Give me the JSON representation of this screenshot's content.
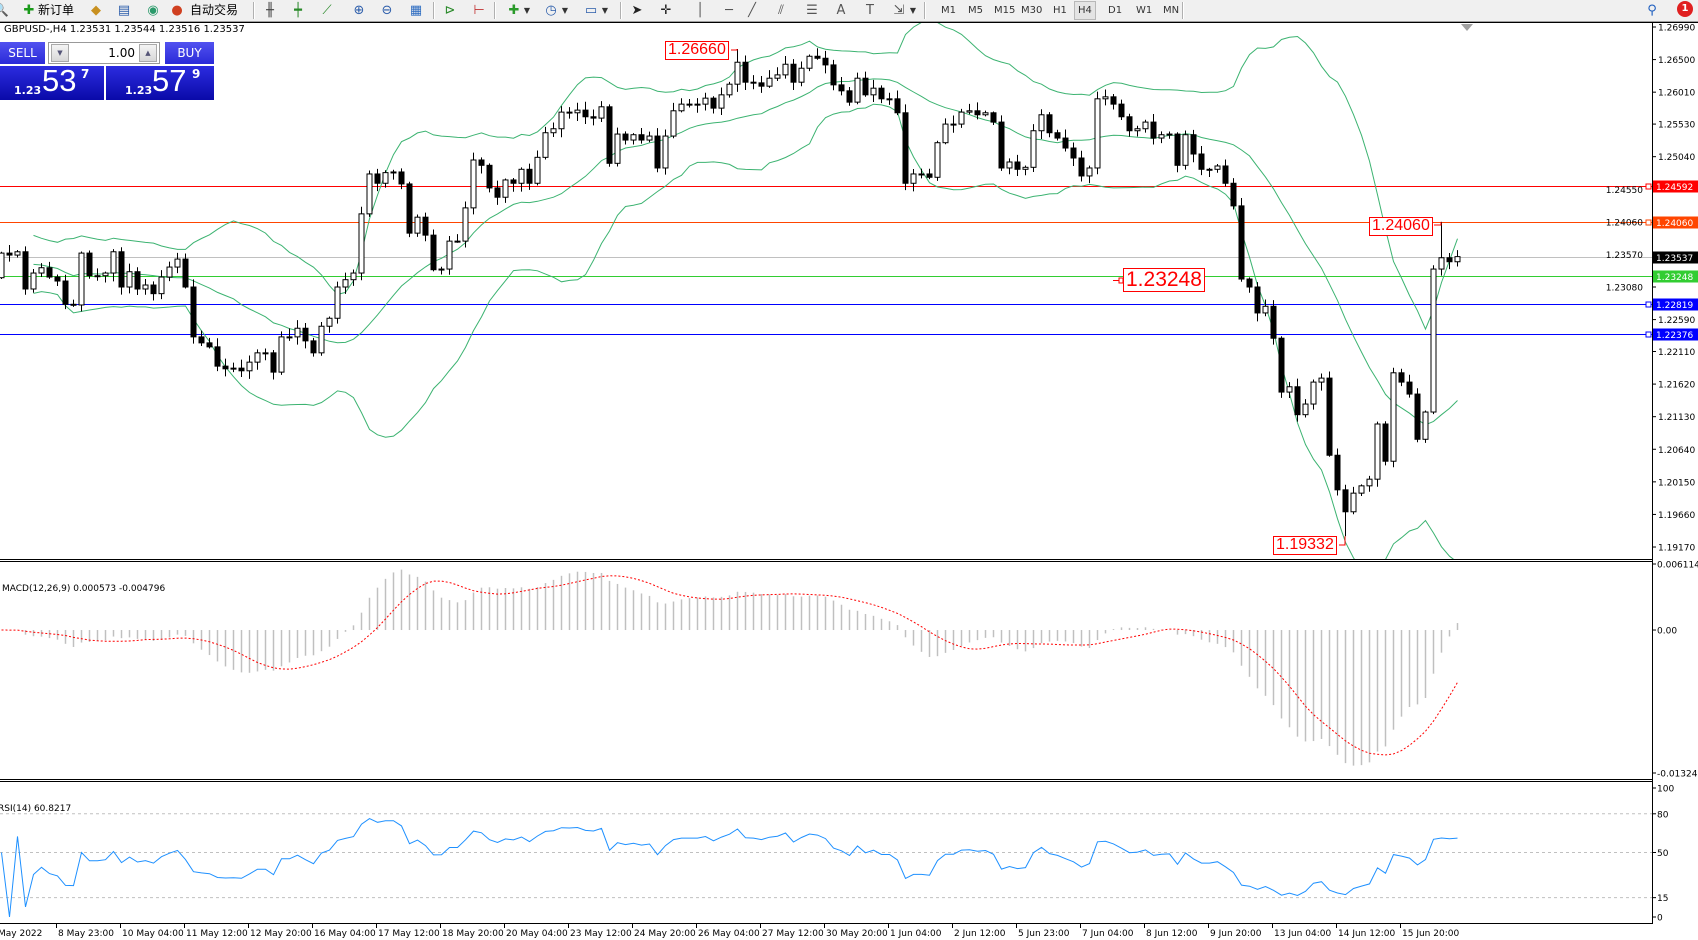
{
  "toolbar": {
    "new_order_label": "新订单",
    "auto_trading_label": "自动交易",
    "icons": [
      "new-order-icon",
      "meta-editor-icon",
      "market-watch-icon",
      "signals-icon",
      "auto-trading-icon",
      "bar-chart-icon",
      "candlestick-icon",
      "line-chart-icon",
      "zoom-in-icon",
      "zoom-out-icon",
      "tile-windows-icon",
      "auto-scroll-icon",
      "chart-shift-icon",
      "indicators-icon",
      "periods-icon",
      "templates-icon",
      "cursor-icon",
      "crosshair-icon",
      "vertical-line-icon",
      "horizontal-line-icon",
      "trendline-icon",
      "equidistant-channel-icon",
      "fibonacci-icon",
      "text-icon",
      "text-label-icon",
      "arrows-icon"
    ],
    "timeframes": [
      "M1",
      "M5",
      "M15",
      "M30",
      "H1",
      "H4",
      "D1",
      "W1",
      "MN"
    ],
    "active_timeframe": "H4",
    "notification_count": "1"
  },
  "chart": {
    "header": "GBPUSD-,H4  1.23531 1.23544 1.23516 1.23537",
    "symbol": "GBPUSD-",
    "timeframe": "H4"
  },
  "trade_panel": {
    "sell_label": "SELL",
    "buy_label": "BUY",
    "lot": "1.00",
    "sell_prefix": "1.23",
    "sell_big": "53",
    "sell_pip": "7",
    "buy_prefix": "1.23",
    "buy_big": "57",
    "buy_pip": "9"
  },
  "price_axis": {
    "ticks": [
      "1.26990",
      "1.26500",
      "1.26010",
      "1.25530",
      "1.25040",
      "1.24550",
      "1.24060",
      "1.23570",
      "1.23080",
      "1.22590",
      "1.22110",
      "1.21620",
      "1.21130",
      "1.20640",
      "1.20150",
      "1.19660",
      "1.19170"
    ]
  },
  "time_axis": {
    "labels": [
      "May 2022",
      "8 May 23:00",
      "10 May 04:00",
      "11 May 12:00",
      "12 May 20:00",
      "16 May 04:00",
      "17 May 12:00",
      "18 May 20:00",
      "20 May 04:00",
      "23 May 12:00",
      "24 May 20:00",
      "26 May 04:00",
      "27 May 12:00",
      "30 May 20:00",
      "1 Jun 04:00",
      "2 Jun 12:00",
      "5 Jun 23:00",
      "7 Jun 04:00",
      "8 Jun 12:00",
      "9 Jun 20:00",
      "13 Jun 04:00",
      "14 Jun 12:00",
      "15 Jun 20:00"
    ]
  },
  "levels": [
    {
      "price": "1.24592",
      "color": "#ff0000",
      "label_bg": "#ff0000"
    },
    {
      "price": "1.24060",
      "color": "#ff4500",
      "label_bg": "#ff4500"
    },
    {
      "price": "1.23537",
      "color": "#c0c0c0",
      "label_bg": "#000000"
    },
    {
      "price": "1.23248",
      "color": "#32cd32",
      "label_bg": "#32cd32"
    },
    {
      "price": "1.22819",
      "color": "#0000ff",
      "label_bg": "#0000ff"
    },
    {
      "price": "1.22376",
      "color": "#0000ff",
      "label_bg": "#0000ff"
    }
  ],
  "callouts": {
    "high": "1.26660",
    "recent_high": "1.24060",
    "level": "1.23248",
    "low": "1.19332"
  },
  "macd": {
    "title": "MACD(12,26,9) 0.000573 -0.004796",
    "scale_max": "0.006114",
    "scale_zero": "0.00",
    "scale_min": "-0.013241",
    "histogram_color": "#c0c0c0",
    "signal_color": "#ff0000"
  },
  "rsi": {
    "title": "RSI(14) 60.8217",
    "levels": [
      "100",
      "80",
      "50",
      "15",
      "0"
    ],
    "line_color": "#1e90ff"
  },
  "chart_data": {
    "type": "candlestick",
    "symbol": "GBPUSD-",
    "timeframe": "H4",
    "ylim": [
      1.1917,
      1.2699
    ],
    "first_open": 1.2322,
    "close": [
      1.2359,
      1.2356,
      1.2361,
      1.2305,
      1.2329,
      1.2337,
      1.2323,
      1.2317,
      1.2282,
      1.2281,
      1.2359,
      1.2325,
      1.2325,
      1.2329,
      1.2361,
      1.2308,
      1.2331,
      1.2305,
      1.2311,
      1.2298,
      1.2323,
      1.2338,
      1.235,
      1.2308,
      1.2233,
      1.2224,
      1.2218,
      1.2189,
      1.2185,
      1.2186,
      1.2182,
      1.2195,
      1.2209,
      1.2209,
      1.218,
      1.2233,
      1.2233,
      1.2246,
      1.2227,
      1.2209,
      1.2249,
      1.2261,
      1.2308,
      1.2319,
      1.2329,
      1.2418,
      1.2478,
      1.2464,
      1.248,
      1.2481,
      1.2463,
      1.2389,
      1.2413,
      1.2386,
      1.2334,
      1.2335,
      1.2377,
      1.2377,
      1.2427,
      1.2499,
      1.2491,
      1.2457,
      1.2443,
      1.2469,
      1.2464,
      1.2485,
      1.2464,
      1.2503,
      1.254,
      1.2546,
      1.2571,
      1.257,
      1.2574,
      1.2564,
      1.2562,
      1.2579,
      1.2494,
      1.2538,
      1.2529,
      1.2537,
      1.2529,
      1.2535,
      1.2487,
      1.2535,
      1.2573,
      1.2583,
      1.2583,
      1.2583,
      1.2592,
      1.2577,
      1.2597,
      1.2613,
      1.2646,
      1.2616,
      1.2615,
      1.261,
      1.2622,
      1.2627,
      1.2643,
      1.2616,
      1.2637,
      1.2655,
      1.2652,
      1.2642,
      1.2612,
      1.2603,
      1.2586,
      1.2622,
      1.2597,
      1.2607,
      1.2591,
      1.2591,
      1.257,
      1.2464,
      1.2478,
      1.2478,
      1.2473,
      1.2525,
      1.2553,
      1.2553,
      1.2571,
      1.2573,
      1.2567,
      1.257,
      1.2556,
      1.2487,
      1.2496,
      1.2485,
      1.2488,
      1.2543,
      1.2567,
      1.254,
      1.2532,
      1.2517,
      1.2502,
      1.2475,
      1.2487,
      1.2591,
      1.2594,
      1.2583,
      1.2564,
      1.2543,
      1.2546,
      1.2556,
      1.2532,
      1.2537,
      1.2538,
      1.2491,
      1.2537,
      1.2508,
      1.2485,
      1.2485,
      1.249,
      1.2464,
      1.243,
      1.232,
      1.2308,
      1.2269,
      1.2279,
      1.2231,
      1.215,
      1.2158,
      1.2116,
      1.2132,
      1.2165,
      1.2171,
      1.2055,
      1.2003,
      1.197,
      1.1998,
      1.2009,
      1.2019,
      1.2102,
      1.2046,
      1.2179,
      1.2165,
      1.2147,
      1.2079,
      1.212,
      1.2335,
      1.2352,
      1.2346,
      1.23537
    ],
    "marked_high": 1.2666,
    "marked_recent_high": 1.2406,
    "marked_low": 1.19332,
    "indicators": [
      "Bollinger Bands",
      "MACD(12,26,9)",
      "RSI(14)"
    ]
  }
}
